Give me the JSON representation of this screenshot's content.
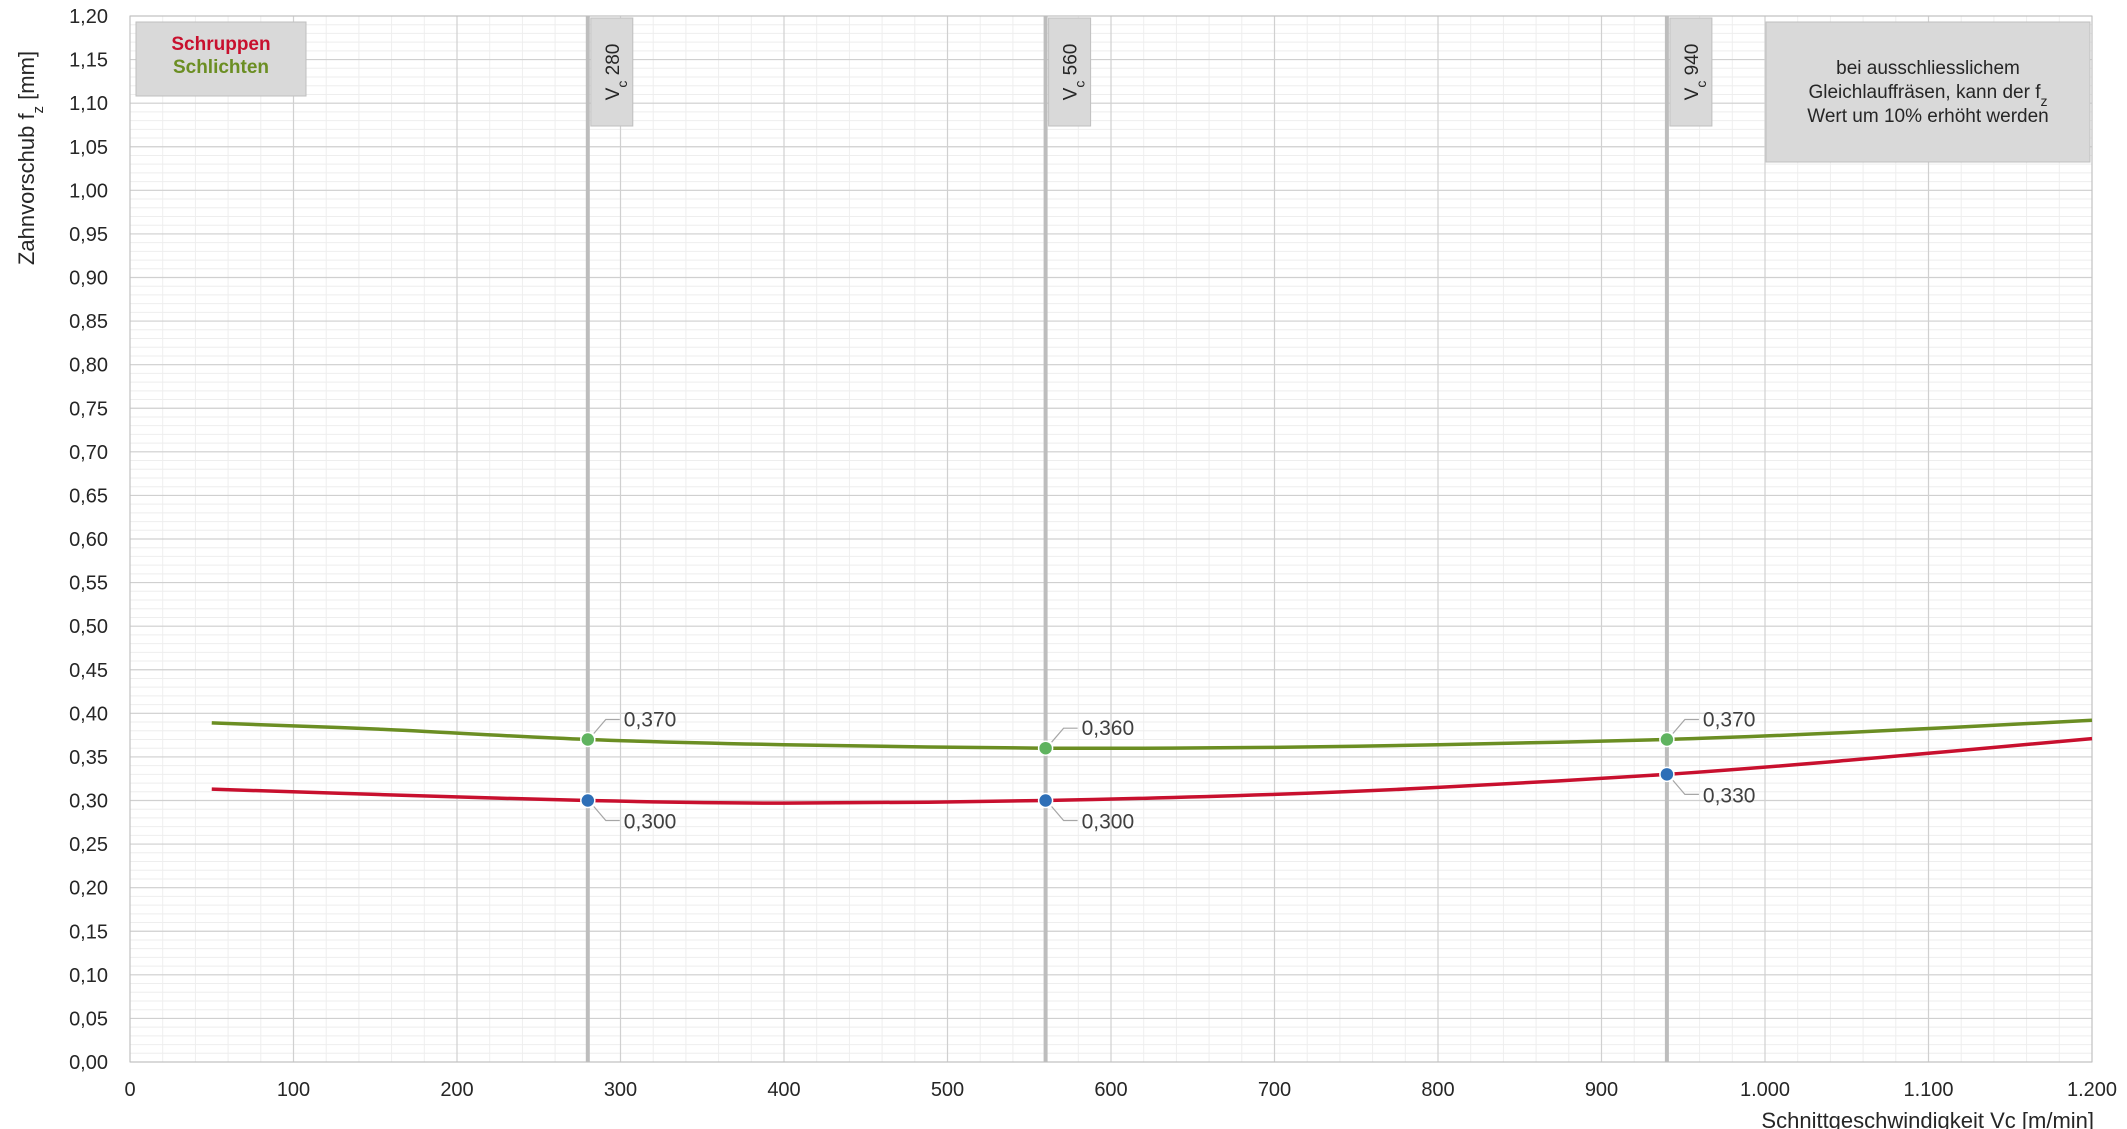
{
  "chart_data": {
    "type": "line",
    "xlabel": "Schnittgeschwindigkeit Vc [m/min]",
    "ylabel": "Zahnvorschub f_z [mm]",
    "xlim": [
      0,
      1200
    ],
    "ylim": [
      0,
      1.2
    ],
    "x_ticks": [
      0,
      100,
      200,
      300,
      400,
      500,
      600,
      700,
      800,
      900,
      1000,
      1100,
      1200
    ],
    "x_tick_labels": [
      "0",
      "100",
      "200",
      "300",
      "400",
      "500",
      "600",
      "700",
      "800",
      "900",
      "1.000",
      "1.100",
      "1.200"
    ],
    "y_tick_labels": [
      "0,00",
      "0,05",
      "0,10",
      "0,15",
      "0,20",
      "0,25",
      "0,30",
      "0,35",
      "0,40",
      "0,45",
      "0,50",
      "0,55",
      "0,60",
      "0,65",
      "0,70",
      "0,75",
      "0,80",
      "0,85",
      "0,90",
      "0,95",
      "1,00",
      "1,05",
      "1,10",
      "1,15",
      "1,20"
    ],
    "grid": true,
    "legend_position": "top-left",
    "series": [
      {
        "name": "Schruppen",
        "color": "#c8102e",
        "curve_x": [
          50,
          150,
          280,
          400,
          560,
          700,
          800,
          940,
          1050,
          1200
        ],
        "curve_y": [
          0.313,
          0.307,
          0.3,
          0.297,
          0.3,
          0.307,
          0.315,
          0.33,
          0.346,
          0.371
        ],
        "points_x": [
          280,
          560,
          940
        ],
        "points_y": [
          0.3,
          0.3,
          0.33
        ],
        "point_labels": [
          "0,300",
          "0,300",
          "0,330"
        ],
        "label_side": "below",
        "marker_color": "#2e6fb7"
      },
      {
        "name": "Schlichten",
        "color": "#6b8e23",
        "curve_x": [
          50,
          150,
          280,
          400,
          560,
          700,
          800,
          940,
          1050,
          1200
        ],
        "curve_y": [
          0.389,
          0.382,
          0.37,
          0.364,
          0.36,
          0.361,
          0.364,
          0.37,
          0.378,
          0.392
        ],
        "points_x": [
          280,
          560,
          940
        ],
        "points_y": [
          0.37,
          0.36,
          0.37
        ],
        "point_labels": [
          "0,370",
          "0,360",
          "0,370"
        ],
        "label_side": "above",
        "marker_color": "#5fb35f"
      }
    ],
    "reference_lines": [
      {
        "x": 280,
        "label_main": "V",
        "label_sub": "c",
        "label_value": " 280"
      },
      {
        "x": 560,
        "label_main": "V",
        "label_sub": "c",
        "label_value": " 560"
      },
      {
        "x": 940,
        "label_main": "V",
        "label_sub": "c",
        "label_value": " 940"
      }
    ],
    "note_lines": [
      "bei ausschliesslichem",
      "Gleichlauffräsen, kann der f",
      "Wert um 10% erhöht werden"
    ],
    "note_sub": "z"
  }
}
